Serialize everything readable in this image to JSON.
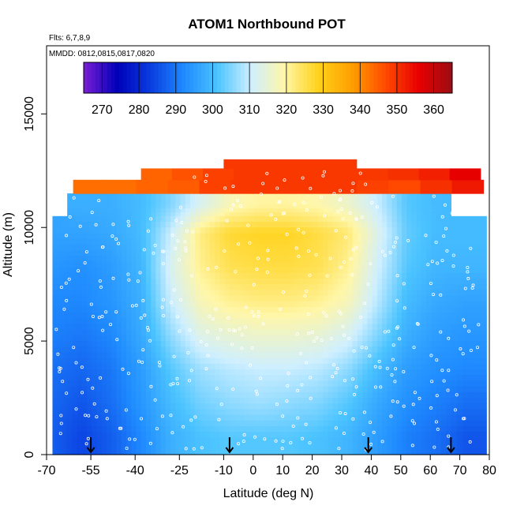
{
  "chart_data": {
    "type": "heatmap",
    "title": "ATOM1 Northbound POT",
    "notes": [
      "Flts: 6,7,8,9",
      "MMDD: 0812,0815,0817,0820"
    ],
    "xlabel": "Latitude (deg N)",
    "ylabel": "Altitude (m)",
    "xlim": [
      -70,
      80
    ],
    "ylim": [
      0,
      18000
    ],
    "x_ticks": [
      -70,
      -55,
      -40,
      -25,
      -10,
      0,
      10,
      20,
      30,
      40,
      50,
      60,
      70,
      80
    ],
    "y_ticks": [
      0,
      5000,
      10000,
      15000
    ],
    "colorbar": {
      "min": 265,
      "max": 365,
      "ticks": [
        270,
        280,
        290,
        300,
        310,
        320,
        330,
        340,
        350,
        360
      ],
      "colors": [
        "#7b1fd4",
        "#0000b8",
        "#0a3de0",
        "#1f8bff",
        "#4cc4ff",
        "#cfefff",
        "#fff6a8",
        "#ffd21a",
        "#ff9f00",
        "#ff4a00",
        "#e80000",
        "#9a0d14"
      ]
    },
    "series": [
      {
        "y_top": 11500,
        "values": [
          null,
          298,
          298,
          300,
          305,
          312,
          318,
          320,
          320,
          319,
          316,
          310,
          302,
          300,
          null
        ]
      },
      {
        "y_top": 10500,
        "values": [
          296,
          296,
          297,
          300,
          310,
          322,
          327,
          328,
          328,
          326,
          323,
          313,
          303,
          300,
          300
        ]
      },
      {
        "y_top": 9000,
        "values": [
          294,
          293,
          295,
          299,
          312,
          321,
          325,
          326,
          326,
          325,
          321,
          311,
          302,
          299,
          299
        ]
      },
      {
        "y_top": 7500,
        "values": [
          292,
          292,
          294,
          298,
          310,
          318,
          321,
          322,
          322,
          321,
          318,
          309,
          300,
          297,
          296
        ]
      },
      {
        "y_top": 6000,
        "values": [
          291,
          290,
          292,
          297,
          306,
          313,
          315,
          316,
          316,
          315,
          312,
          305,
          298,
          295,
          294
        ]
      },
      {
        "y_top": 4500,
        "values": [
          289,
          288,
          290,
          295,
          302,
          307,
          309,
          310,
          310,
          309,
          306,
          300,
          295,
          293,
          292
        ]
      },
      {
        "y_top": 3000,
        "values": [
          288,
          286,
          289,
          294,
          300,
          304,
          306,
          307,
          306,
          305,
          302,
          297,
          293,
          291,
          289
        ]
      },
      {
        "y_top": 1500,
        "values": [
          287,
          284,
          287,
          292,
          298,
          301,
          302,
          302,
          302,
          301,
          299,
          295,
          291,
          289,
          286
        ]
      }
    ],
    "x_columns": [
      -68,
      -58,
      -48,
      -38,
      -28,
      -18,
      -8,
      2,
      12,
      22,
      32,
      42,
      52,
      62,
      72
    ],
    "top_bands": [
      {
        "y_bottom": 11500,
        "y_top": 12100,
        "x_start": -61,
        "x_end": 78,
        "values": [
          343,
          343,
          344,
          345,
          348,
          349,
          349,
          349,
          349,
          348,
          347,
          350,
          353
        ]
      },
      {
        "y_bottom": 12100,
        "y_top": 12600,
        "x_start": -38,
        "x_end": 77,
        "values": [
          344,
          346,
          348,
          349,
          349,
          349,
          349,
          349,
          350,
          352,
          356
        ]
      },
      {
        "y_bottom": 12600,
        "y_top": 13000,
        "x_start": -10,
        "x_end": 35,
        "values": [
          349,
          349,
          349,
          349,
          349
        ]
      }
    ],
    "markers": [
      -55,
      -8,
      39,
      67
    ]
  }
}
